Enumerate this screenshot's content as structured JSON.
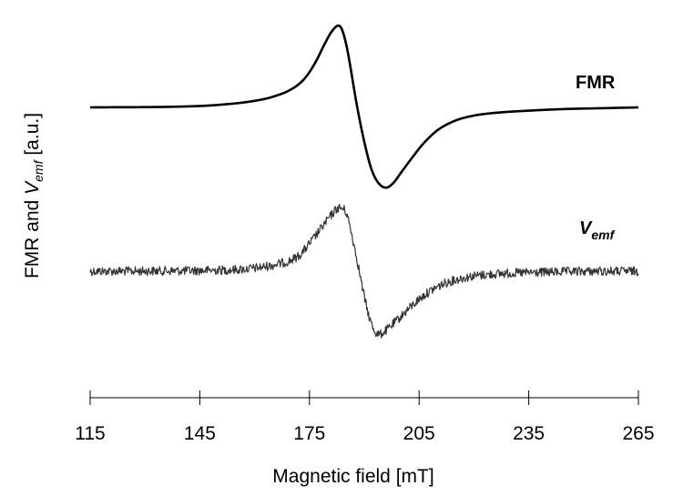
{
  "chart_data": {
    "type": "line",
    "xlabel": "Magnetic field [mT]",
    "ylabel": {
      "prefix": "FMR and ",
      "var": "V",
      "sub": "emf",
      "suffix": " [a.u.]"
    },
    "xlim": [
      115,
      265
    ],
    "xticks": [
      115,
      145,
      175,
      205,
      235,
      265
    ],
    "grid": false,
    "series": [
      {
        "name": "FMR",
        "label": {
          "text": "FMR"
        },
        "color": "#000000",
        "style": "smooth",
        "x": [
          115,
          140,
          150,
          160,
          165,
          170,
          173,
          175,
          177,
          179,
          181,
          183,
          184,
          185,
          186,
          187,
          188,
          190,
          192,
          194,
          196,
          198,
          200,
          203,
          206,
          210,
          215,
          220,
          225,
          235,
          245,
          255,
          265
        ],
        "y": [
          0.0,
          0.01,
          0.03,
          0.08,
          0.13,
          0.22,
          0.32,
          0.43,
          0.58,
          0.76,
          0.92,
          1.0,
          0.94,
          0.78,
          0.55,
          0.28,
          0.02,
          -0.42,
          -0.76,
          -0.93,
          -0.98,
          -0.92,
          -0.8,
          -0.62,
          -0.45,
          -0.28,
          -0.16,
          -0.1,
          -0.07,
          -0.04,
          -0.02,
          -0.01,
          0.0
        ]
      },
      {
        "name": "Vemf",
        "label": {
          "var": "V",
          "sub": "emf"
        },
        "color": "#333333",
        "style": "noisy",
        "x": [
          115,
          150,
          165,
          172,
          175,
          178,
          181,
          183,
          185,
          186,
          188,
          190,
          192,
          194,
          196,
          199,
          203,
          207,
          212,
          218,
          225,
          240,
          255,
          265
        ],
        "y": [
          0.0,
          0.01,
          0.06,
          0.15,
          0.27,
          0.41,
          0.55,
          0.62,
          0.58,
          0.45,
          0.12,
          -0.25,
          -0.52,
          -0.62,
          -0.58,
          -0.48,
          -0.34,
          -0.22,
          -0.12,
          -0.06,
          -0.03,
          -0.01,
          0.0,
          0.0
        ]
      }
    ]
  }
}
